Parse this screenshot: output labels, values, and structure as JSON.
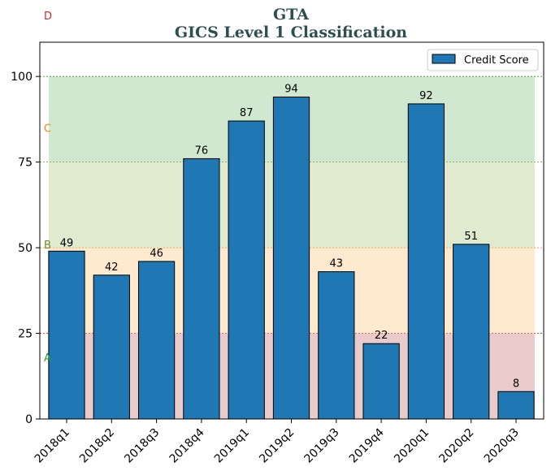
{
  "chart_data": {
    "type": "bar",
    "title": "GTA",
    "subtitle": "GICS Level 1 Classification",
    "categories": [
      "2018q1",
      "2018q2",
      "2018q3",
      "2018q4",
      "2019q1",
      "2019q2",
      "2019q3",
      "2019q4",
      "2020q1",
      "2020q2",
      "2020q3"
    ],
    "series": [
      {
        "name": "Credit Score",
        "values": [
          49,
          42,
          46,
          76,
          87,
          94,
          43,
          22,
          92,
          51,
          8
        ]
      }
    ],
    "ylim": [
      0,
      110
    ],
    "yticks": [
      "0",
      "25",
      "50",
      "75",
      "100"
    ],
    "ytick_values": [
      0,
      25,
      50,
      75,
      100
    ],
    "legend_position": "top-right",
    "bar_color": "#1f77b4",
    "title_color": "#2f4f4f",
    "bands": [
      {
        "label": "A",
        "from": 0,
        "to": 25,
        "fill": "#d9a0a3",
        "line": "#d62728",
        "label_color": "#2ca02c",
        "label_value": 18
      },
      {
        "label": "B",
        "from": 25,
        "to": 50,
        "fill": "#ffd7a8",
        "line": "#ff7f0e",
        "label_color": "#6b8e23",
        "label_value": 51
      },
      {
        "label": "C",
        "from": 50,
        "to": 75,
        "fill": "#c6d8a8",
        "line": "#6b8e23",
        "label_color": "#ff7f0e",
        "label_value": 85
      },
      {
        "label": "D",
        "from": 75,
        "to": 100,
        "fill": "#a8d5a8",
        "line": "#2ca02c",
        "label_color": "#d62728",
        "label_value": null
      }
    ]
  }
}
